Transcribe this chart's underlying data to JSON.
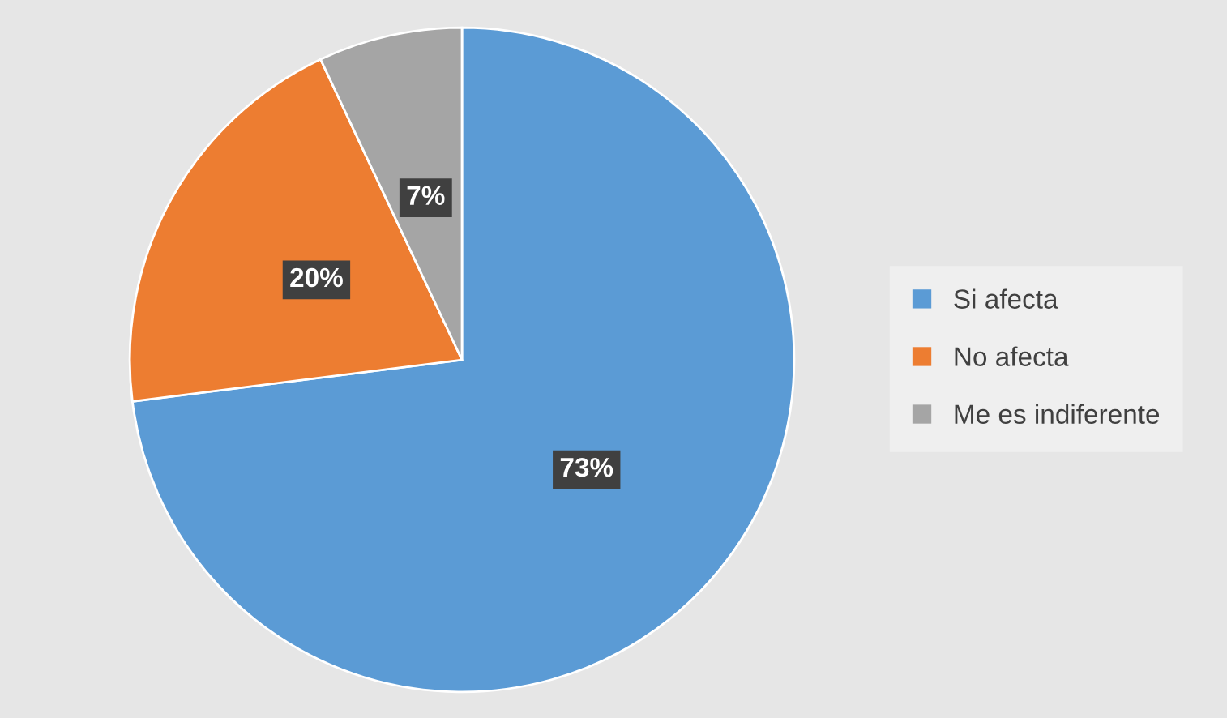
{
  "chart_data": {
    "type": "pie",
    "categories": [
      "Si afecta",
      "No afecta",
      "Me es indiferente"
    ],
    "values": [
      73,
      20,
      7
    ],
    "colors": [
      "#5b9bd5",
      "#ed7d31",
      "#a5a5a5"
    ],
    "value_labels": [
      "73%",
      "20%",
      "7%"
    ],
    "legend": "right"
  }
}
